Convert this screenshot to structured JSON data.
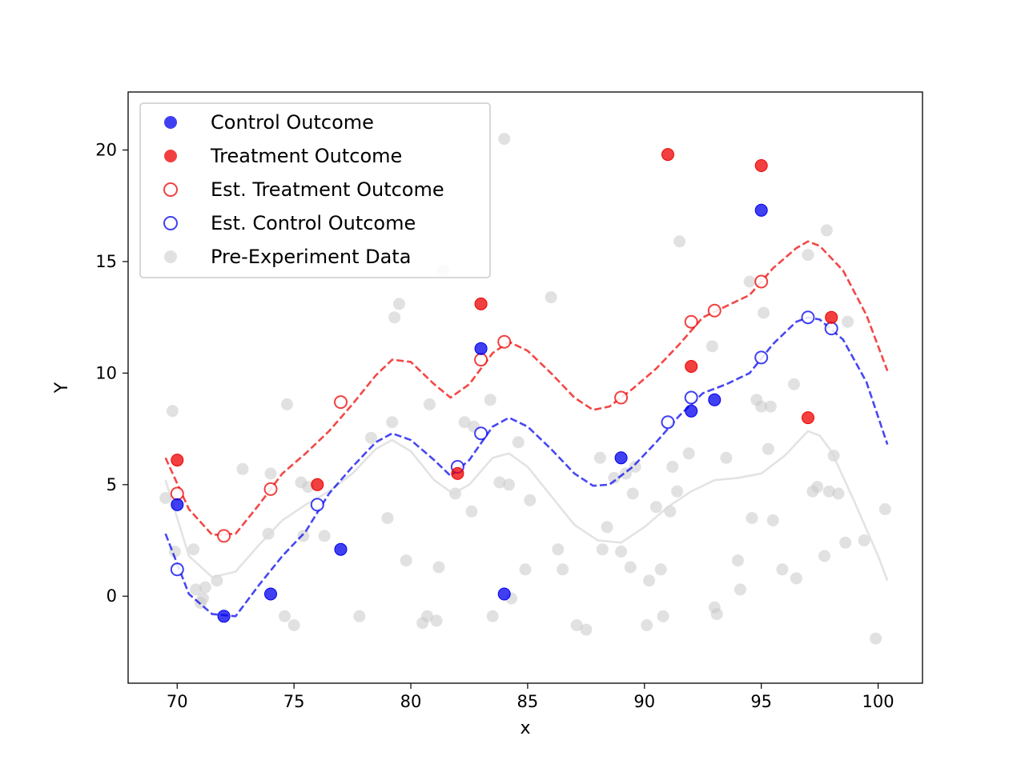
{
  "chart_data": {
    "type": "scatter",
    "xlabel": "x",
    "ylabel": "Y",
    "xlim": [
      67.9,
      101.9
    ],
    "ylim": [
      -3.9,
      22.6
    ],
    "xticks": [
      70,
      75,
      80,
      85,
      90,
      95,
      100
    ],
    "yticks": [
      0,
      5,
      10,
      15,
      20
    ],
    "grid": false,
    "legend_position": "top-left",
    "colors": {
      "control": "#0000ee",
      "treatment": "#ee0000",
      "pre": "#c8c8c8",
      "pre_curve": "#d9d9d9"
    },
    "legend": [
      {
        "label": "Control Outcome",
        "marker": "filled",
        "color": "#0000ee"
      },
      {
        "label": "Treatment Outcome",
        "marker": "filled",
        "color": "#ee0000"
      },
      {
        "label": "Est. Treatment Outcome",
        "marker": "hollow",
        "color": "#ee0000"
      },
      {
        "label": "Est. Control Outcome",
        "marker": "hollow",
        "color": "#0000ee"
      },
      {
        "label": "Pre-Experiment Data",
        "marker": "filled",
        "color": "#c8c8c8"
      }
    ],
    "series": [
      {
        "name": "Control Outcome",
        "kind": "points",
        "filled": true,
        "points": [
          [
            70,
            4.1
          ],
          [
            72,
            -0.9
          ],
          [
            74,
            0.1
          ],
          [
            77,
            2.1
          ],
          [
            83,
            11.1
          ],
          [
            84,
            0.1
          ],
          [
            89,
            6.2
          ],
          [
            92,
            8.3
          ],
          [
            93,
            8.8
          ],
          [
            95,
            17.3
          ]
        ]
      },
      {
        "name": "Treatment Outcome",
        "kind": "points",
        "filled": true,
        "points": [
          [
            70,
            6.1
          ],
          [
            76,
            5.0
          ],
          [
            82,
            5.5
          ],
          [
            83,
            13.1
          ],
          [
            91,
            19.8
          ],
          [
            92,
            10.3
          ],
          [
            95,
            19.3
          ],
          [
            97,
            8.0
          ],
          [
            98,
            12.5
          ]
        ]
      },
      {
        "name": "Est. Treatment Outcome",
        "kind": "points",
        "filled": false,
        "points": [
          [
            70,
            4.6
          ],
          [
            72,
            2.7
          ],
          [
            74,
            4.8
          ],
          [
            77,
            8.7
          ],
          [
            83,
            10.6
          ],
          [
            84,
            11.4
          ],
          [
            89,
            8.9
          ],
          [
            92,
            12.3
          ],
          [
            93,
            12.8
          ],
          [
            95,
            14.1
          ]
        ]
      },
      {
        "name": "Est. Control Outcome",
        "kind": "points",
        "filled": false,
        "points": [
          [
            70,
            1.2
          ],
          [
            76,
            4.1
          ],
          [
            82,
            5.8
          ],
          [
            83,
            7.3
          ],
          [
            91,
            7.8
          ],
          [
            92,
            8.9
          ],
          [
            95,
            10.7
          ],
          [
            97,
            12.5
          ],
          [
            98,
            12.0
          ]
        ]
      },
      {
        "name": "Pre-Experiment Data",
        "kind": "points",
        "filled": true,
        "points": [
          [
            69.5,
            4.4
          ],
          [
            69.8,
            8.3
          ],
          [
            69.9,
            2.0
          ],
          [
            70.7,
            2.1
          ],
          [
            70.8,
            0.3
          ],
          [
            71.0,
            -0.3
          ],
          [
            71.1,
            -0.1
          ],
          [
            71.2,
            0.4
          ],
          [
            71.7,
            0.7
          ],
          [
            72.8,
            5.7
          ],
          [
            73.9,
            2.8
          ],
          [
            74.0,
            5.5
          ],
          [
            74.6,
            -0.9
          ],
          [
            74.7,
            8.6
          ],
          [
            75.0,
            -1.3
          ],
          [
            75.3,
            5.1
          ],
          [
            75.4,
            2.7
          ],
          [
            75.6,
            4.9
          ],
          [
            76.3,
            2.7
          ],
          [
            77.8,
            -0.9
          ],
          [
            78.3,
            7.1
          ],
          [
            79.0,
            3.5
          ],
          [
            79.2,
            7.8
          ],
          [
            79.3,
            12.5
          ],
          [
            79.5,
            13.1
          ],
          [
            79.8,
            1.6
          ],
          [
            80.5,
            -1.2
          ],
          [
            80.7,
            -0.9
          ],
          [
            80.8,
            8.6
          ],
          [
            81.1,
            -1.1
          ],
          [
            81.2,
            1.3
          ],
          [
            81.4,
            14.6
          ],
          [
            81.9,
            4.6
          ],
          [
            82.3,
            7.8
          ],
          [
            82.6,
            3.8
          ],
          [
            82.7,
            7.6
          ],
          [
            83.4,
            8.8
          ],
          [
            83.5,
            -0.9
          ],
          [
            83.8,
            5.1
          ],
          [
            84.0,
            20.5
          ],
          [
            84.2,
            5.0
          ],
          [
            84.3,
            -0.1
          ],
          [
            84.6,
            6.9
          ],
          [
            84.9,
            1.2
          ],
          [
            85.1,
            4.3
          ],
          [
            86.0,
            13.4
          ],
          [
            86.3,
            2.1
          ],
          [
            86.5,
            1.2
          ],
          [
            87.1,
            -1.3
          ],
          [
            87.5,
            -1.5
          ],
          [
            88.1,
            6.2
          ],
          [
            88.2,
            2.1
          ],
          [
            88.4,
            3.1
          ],
          [
            88.7,
            5.3
          ],
          [
            89.0,
            2.0
          ],
          [
            89.2,
            5.5
          ],
          [
            89.4,
            1.3
          ],
          [
            89.5,
            4.6
          ],
          [
            89.6,
            5.8
          ],
          [
            90.1,
            -1.3
          ],
          [
            90.2,
            0.7
          ],
          [
            90.5,
            4.0
          ],
          [
            90.7,
            1.2
          ],
          [
            90.8,
            -0.9
          ],
          [
            91.1,
            3.8
          ],
          [
            91.2,
            5.8
          ],
          [
            91.4,
            4.7
          ],
          [
            91.5,
            15.9
          ],
          [
            91.9,
            6.4
          ],
          [
            92.9,
            11.2
          ],
          [
            93.0,
            -0.5
          ],
          [
            93.1,
            -0.8
          ],
          [
            93.5,
            6.2
          ],
          [
            94.0,
            1.6
          ],
          [
            94.1,
            0.3
          ],
          [
            94.5,
            14.1
          ],
          [
            94.6,
            3.5
          ],
          [
            94.8,
            8.8
          ],
          [
            95.0,
            8.5
          ],
          [
            95.1,
            12.7
          ],
          [
            95.3,
            6.6
          ],
          [
            95.4,
            8.5
          ],
          [
            95.5,
            3.4
          ],
          [
            95.9,
            1.2
          ],
          [
            96.4,
            9.5
          ],
          [
            96.5,
            0.8
          ],
          [
            97.0,
            15.3
          ],
          [
            97.2,
            4.7
          ],
          [
            97.4,
            4.9
          ],
          [
            97.7,
            1.8
          ],
          [
            97.8,
            16.4
          ],
          [
            97.9,
            4.7
          ],
          [
            98.1,
            6.3
          ],
          [
            98.3,
            4.6
          ],
          [
            98.6,
            2.4
          ],
          [
            98.7,
            12.3
          ],
          [
            99.4,
            2.5
          ],
          [
            99.9,
            -1.9
          ],
          [
            100.3,
            3.9
          ]
        ]
      },
      {
        "name": "Pre-Experiment Fit",
        "kind": "line",
        "dashed": false,
        "points": [
          [
            69.5,
            5.2
          ],
          [
            70.5,
            1.8
          ],
          [
            71.5,
            0.85
          ],
          [
            72.5,
            1.1
          ],
          [
            73.5,
            2.3
          ],
          [
            74.5,
            3.4
          ],
          [
            75.5,
            4.1
          ],
          [
            76.5,
            4.7
          ],
          [
            77.5,
            5.5
          ],
          [
            78.5,
            6.6
          ],
          [
            79.2,
            7.0
          ],
          [
            80.0,
            6.5
          ],
          [
            81.0,
            5.2
          ],
          [
            81.8,
            4.6
          ],
          [
            82.5,
            5.0
          ],
          [
            83.5,
            6.2
          ],
          [
            84.2,
            6.4
          ],
          [
            85.0,
            5.8
          ],
          [
            86.0,
            4.5
          ],
          [
            87.0,
            3.2
          ],
          [
            88.0,
            2.5
          ],
          [
            89.0,
            2.4
          ],
          [
            90.0,
            3.1
          ],
          [
            91.0,
            4.0
          ],
          [
            92.0,
            4.7
          ],
          [
            93.0,
            5.2
          ],
          [
            94.0,
            5.3
          ],
          [
            95.0,
            5.5
          ],
          [
            96.0,
            6.3
          ],
          [
            97.0,
            7.4
          ],
          [
            97.5,
            7.2
          ],
          [
            98.0,
            6.5
          ],
          [
            99.0,
            4.2
          ],
          [
            100.0,
            1.8
          ],
          [
            100.4,
            0.7
          ]
        ]
      },
      {
        "name": "Treatment Fit",
        "kind": "line",
        "dashed": true,
        "points": [
          [
            69.5,
            6.2
          ],
          [
            70.5,
            3.9
          ],
          [
            71.5,
            2.75
          ],
          [
            72.5,
            2.8
          ],
          [
            73.5,
            4.1
          ],
          [
            74.5,
            5.5
          ],
          [
            75.5,
            6.4
          ],
          [
            76.5,
            7.4
          ],
          [
            77.5,
            8.6
          ],
          [
            78.5,
            9.9
          ],
          [
            79.2,
            10.6
          ],
          [
            80.0,
            10.5
          ],
          [
            81.0,
            9.5
          ],
          [
            81.7,
            8.9
          ],
          [
            82.5,
            9.5
          ],
          [
            83.5,
            10.9
          ],
          [
            84.2,
            11.4
          ],
          [
            85.0,
            11.0
          ],
          [
            86.0,
            10.0
          ],
          [
            87.0,
            8.9
          ],
          [
            87.8,
            8.35
          ],
          [
            88.5,
            8.5
          ],
          [
            89.5,
            9.3
          ],
          [
            90.5,
            10.2
          ],
          [
            91.5,
            11.3
          ],
          [
            92.5,
            12.5
          ],
          [
            93.5,
            13.0
          ],
          [
            94.5,
            13.5
          ],
          [
            95.5,
            14.7
          ],
          [
            96.5,
            15.6
          ],
          [
            97.0,
            15.9
          ],
          [
            97.5,
            15.7
          ],
          [
            98.5,
            14.6
          ],
          [
            99.5,
            12.6
          ],
          [
            100.4,
            10.1
          ]
        ]
      },
      {
        "name": "Control Fit",
        "kind": "line",
        "dashed": true,
        "points": [
          [
            69.5,
            2.8
          ],
          [
            70.5,
            0.1
          ],
          [
            71.5,
            -0.8
          ],
          [
            72.5,
            -0.9
          ],
          [
            73.5,
            0.5
          ],
          [
            74.5,
            1.8
          ],
          [
            75.5,
            2.9
          ],
          [
            76.5,
            4.6
          ],
          [
            77.5,
            5.8
          ],
          [
            78.5,
            6.9
          ],
          [
            79.2,
            7.3
          ],
          [
            80.0,
            7.0
          ],
          [
            81.0,
            6.1
          ],
          [
            81.7,
            5.4
          ],
          [
            82.5,
            6.1
          ],
          [
            83.5,
            7.6
          ],
          [
            84.2,
            8.0
          ],
          [
            85.0,
            7.6
          ],
          [
            86.0,
            6.6
          ],
          [
            87.0,
            5.5
          ],
          [
            87.8,
            4.95
          ],
          [
            88.5,
            5.0
          ],
          [
            89.5,
            5.8
          ],
          [
            90.5,
            6.9
          ],
          [
            91.5,
            8.1
          ],
          [
            92.5,
            9.1
          ],
          [
            93.5,
            9.5
          ],
          [
            94.5,
            10.0
          ],
          [
            95.5,
            11.3
          ],
          [
            96.5,
            12.3
          ],
          [
            97.0,
            12.5
          ],
          [
            97.5,
            12.4
          ],
          [
            98.5,
            11.5
          ],
          [
            99.5,
            9.6
          ],
          [
            100.4,
            6.8
          ]
        ]
      }
    ]
  }
}
